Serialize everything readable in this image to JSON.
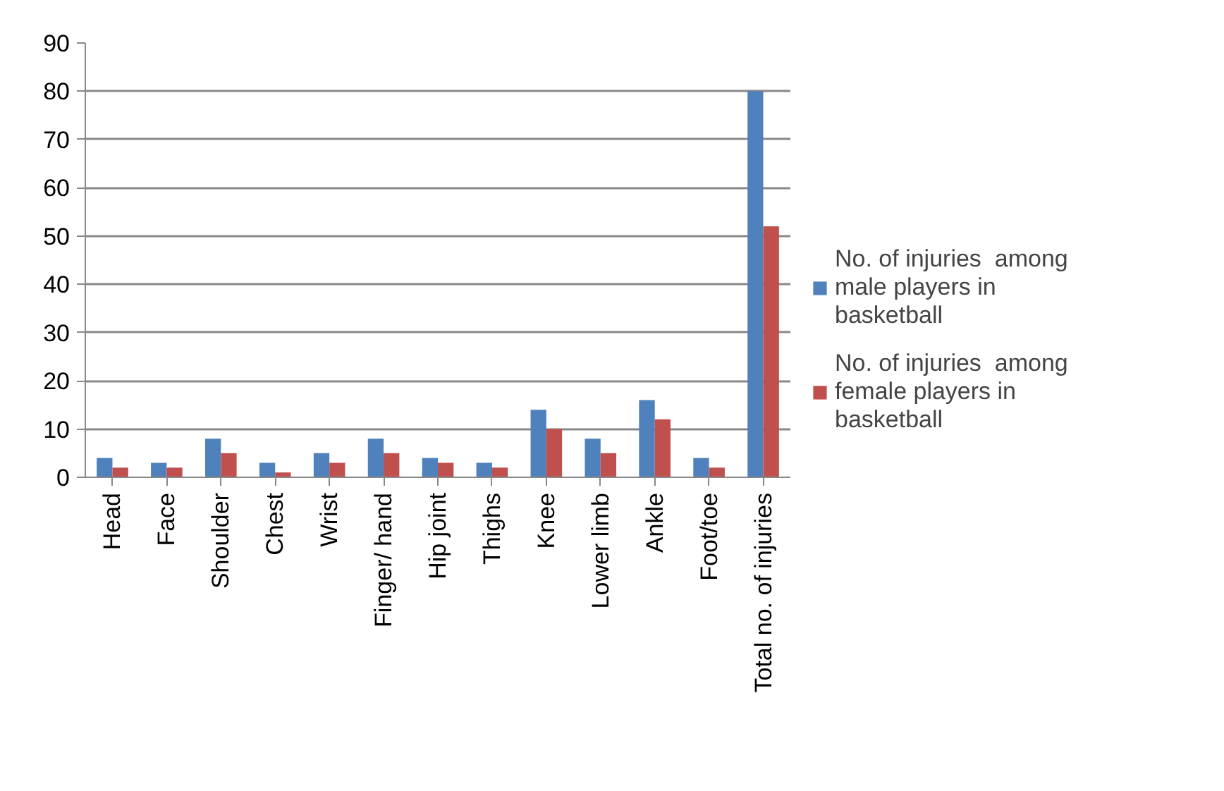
{
  "chart_data": {
    "type": "bar",
    "categories": [
      "Head",
      "Face",
      "Shoulder",
      "Chest",
      "Wrist",
      "Finger/ hand",
      "Hip joint",
      "Thighs",
      "Knee",
      "Lower limb",
      "Ankle",
      "Foot/toe",
      "Total no. of injuries"
    ],
    "series": [
      {
        "name": "No. of injuries  among male players in basketball",
        "color": "#4f81bd",
        "values": [
          4,
          3,
          8,
          3,
          5,
          8,
          4,
          3,
          14,
          8,
          16,
          4,
          80
        ]
      },
      {
        "name": "No. of injuries  among female players in basketball",
        "color": "#c0504d",
        "values": [
          2,
          2,
          5,
          1,
          3,
          5,
          3,
          2,
          10,
          5,
          12,
          2,
          52
        ]
      }
    ],
    "ylim": [
      0,
      90
    ],
    "yticks": [
      0,
      10,
      20,
      30,
      40,
      50,
      60,
      70,
      80,
      90
    ],
    "grid": "y",
    "legend": "right"
  }
}
